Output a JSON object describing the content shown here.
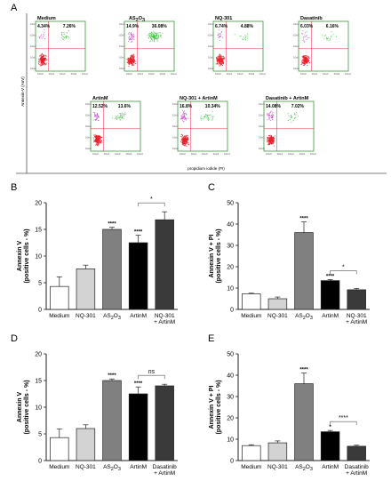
{
  "panel_letters": [
    "A",
    "B",
    "C",
    "D",
    "E"
  ],
  "flow": {
    "x_axis_label": "propidium iodide (PI)",
    "y_axis_label": "Annexin-V (AnV)",
    "tick_labels": [
      "10e0",
      "10e1",
      "10e2",
      "10e3",
      "10e4"
    ],
    "plots": [
      {
        "title": "Medium",
        "q_ul": "4.34%",
        "q_ur": "7.26%"
      },
      {
        "title": "AS2O3",
        "q_ul": "14.9%",
        "q_ur": "36.08%"
      },
      {
        "title": "NQ-301",
        "q_ul": "6.74%",
        "q_ur": "4.88%"
      },
      {
        "title": "Dasatinib",
        "q_ul": "6.03%",
        "q_ur": "6.16%"
      },
      {
        "title": "ArtinM",
        "q_ul": "12.52%",
        "q_ur": "13.6%"
      },
      {
        "title": "NQ-301 + ArtinM",
        "q_ul": "16.8%",
        "q_ur": "10.34%"
      },
      {
        "title": "Dasatinib + ArtinM",
        "q_ul": "14.08%",
        "q_ur": "7.02%"
      }
    ],
    "colors": {
      "live": "#e8202a",
      "early": "#c34fc9",
      "late": "#3cc33c",
      "frame": "#3a9a3a",
      "gate": "#e0283a"
    }
  },
  "bar_colors": [
    "#ffffff",
    "#d3d3d3",
    "#808080",
    "#000000",
    "#3a3a3a"
  ],
  "chart_data": [
    {
      "panel": "B",
      "type": "bar",
      "categories": [
        "Medium",
        "NQ-301",
        "AS2O3",
        "ArtinM",
        "NQ-301 + ArtinM"
      ],
      "values": [
        4.3,
        7.6,
        15.0,
        12.5,
        16.8
      ],
      "errors": [
        1.8,
        0.7,
        0.4,
        1.4,
        1.5
      ],
      "ylabel": "Annexin V (positive cells - %)",
      "ylim": [
        0,
        20
      ],
      "yticks": [
        "0",
        "5",
        "10",
        "15",
        "20"
      ],
      "stars": [
        "",
        "",
        "****",
        "****",
        ""
      ],
      "bracket": {
        "from": 3,
        "to": 4,
        "label": "*"
      }
    },
    {
      "panel": "C",
      "type": "bar",
      "categories": [
        "Medium",
        "NQ-301",
        "AS2O3",
        "ArtinM",
        "NQ-301 + ArtinM"
      ],
      "values": [
        7.3,
        5.0,
        36.0,
        13.5,
        9.2
      ],
      "errors": [
        0.3,
        0.8,
        5.0,
        0.5,
        0.6
      ],
      "ylabel": "Annexin V + PI (positive cells - %)",
      "ylim": [
        0,
        50
      ],
      "yticks": [
        "0",
        "10",
        "20",
        "30",
        "40",
        "50"
      ],
      "stars": [
        "",
        "",
        "****",
        "****",
        ""
      ],
      "bracket": {
        "from": 3,
        "to": 4,
        "label": "*"
      }
    },
    {
      "panel": "D",
      "type": "bar",
      "categories": [
        "Medium",
        "NQ-301",
        "AS2O3",
        "ArtinM",
        "Dasatinib + ArtinM"
      ],
      "values": [
        4.3,
        6.0,
        15.0,
        12.5,
        14.0
      ],
      "errors": [
        1.6,
        0.7,
        0.3,
        1.3,
        0.3
      ],
      "ylabel": "Annexin V (positive cells - %)",
      "ylim": [
        0,
        20
      ],
      "yticks": [
        "0",
        "5",
        "10",
        "15",
        "20"
      ],
      "stars": [
        "",
        "",
        "****",
        "****",
        ""
      ],
      "bracket": {
        "from": 3,
        "to": 4,
        "label": "ns"
      }
    },
    {
      "panel": "E",
      "type": "bar",
      "categories": [
        "Medium",
        "NQ-301",
        "AS2O3",
        "ArtinM",
        "Dasatinib + ArtinM"
      ],
      "values": [
        7.0,
        8.3,
        36.0,
        13.5,
        6.7
      ],
      "errors": [
        0.4,
        0.9,
        5.0,
        0.6,
        0.5
      ],
      "ylabel": "Annexin V + PI (positive cells - %)",
      "ylim": [
        0,
        50
      ],
      "yticks": [
        "0",
        "10",
        "20",
        "30",
        "40",
        "50"
      ],
      "stars": [
        "",
        "",
        "****",
        "*",
        ""
      ],
      "bracket": {
        "from": 3,
        "to": 4,
        "label": "****"
      }
    }
  ]
}
